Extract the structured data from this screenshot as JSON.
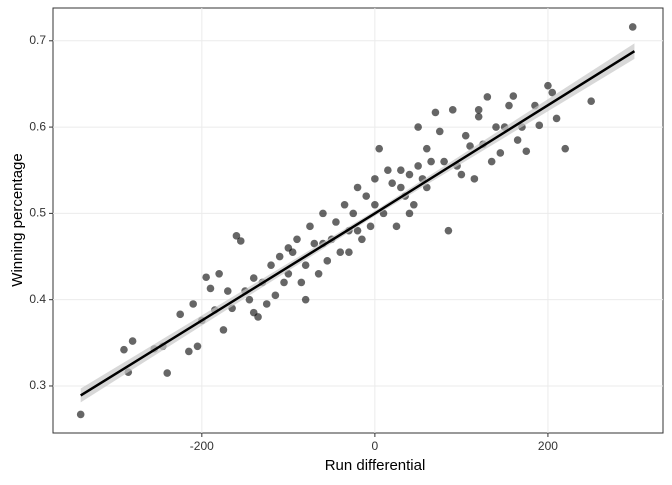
{
  "chart_data": {
    "type": "scatter",
    "x_label": "Run differential",
    "y_label": "Winning percentage",
    "xlim": [
      -372,
      333
    ],
    "ylim": [
      0.2455,
      0.738
    ],
    "xticks": [
      -200,
      0,
      200
    ],
    "yticks": [
      0.3,
      0.4,
      0.5,
      0.6,
      0.7
    ],
    "grid": true,
    "series": [
      {
        "color": "#000000",
        "x": [
          -340,
          298,
          -290,
          -280,
          -285,
          -240,
          -255,
          -245,
          -215,
          -205,
          -225,
          -200,
          -195,
          -190,
          -185,
          -175,
          -160,
          -155,
          250,
          220,
          200,
          205,
          210,
          190,
          185,
          175,
          160,
          155,
          150,
          145,
          130,
          120,
          110,
          100,
          90,
          85,
          75,
          70,
          65,
          60,
          55,
          50,
          45,
          40,
          35,
          30,
          25,
          20,
          15,
          10,
          5,
          0,
          -5,
          -10,
          -15,
          -20,
          -25,
          -30,
          -35,
          -40,
          -45,
          -50,
          -55,
          -60,
          -65,
          -70,
          -75,
          -80,
          -85,
          -90,
          -95,
          -100,
          -105,
          -110,
          -115,
          -120,
          -125,
          -130,
          -135,
          -140,
          -145,
          -150,
          -165,
          -170,
          -180,
          -210,
          95,
          105,
          115,
          125,
          135,
          140,
          165,
          170,
          -60,
          -20,
          40,
          80,
          -100,
          0,
          60,
          -140,
          120,
          -80,
          30,
          -30,
          50
        ],
        "values": [
          0.267,
          0.716,
          0.342,
          0.352,
          0.316,
          0.315,
          0.343,
          0.346,
          0.34,
          0.346,
          0.383,
          0.376,
          0.426,
          0.413,
          0.388,
          0.365,
          0.474,
          0.468,
          0.63,
          0.575,
          0.648,
          0.64,
          0.61,
          0.602,
          0.625,
          0.572,
          0.636,
          0.625,
          0.6,
          0.57,
          0.635,
          0.612,
          0.578,
          0.545,
          0.62,
          0.48,
          0.595,
          0.617,
          0.56,
          0.575,
          0.54,
          0.555,
          0.51,
          0.545,
          0.52,
          0.53,
          0.485,
          0.535,
          0.55,
          0.5,
          0.575,
          0.51,
          0.485,
          0.52,
          0.47,
          0.53,
          0.5,
          0.48,
          0.51,
          0.455,
          0.49,
          0.47,
          0.445,
          0.5,
          0.43,
          0.465,
          0.485,
          0.44,
          0.42,
          0.47,
          0.455,
          0.43,
          0.42,
          0.45,
          0.405,
          0.44,
          0.395,
          0.42,
          0.38,
          0.425,
          0.4,
          0.41,
          0.39,
          0.41,
          0.43,
          0.395,
          0.555,
          0.59,
          0.54,
          0.58,
          0.56,
          0.6,
          0.585,
          0.6,
          0.465,
          0.48,
          0.5,
          0.56,
          0.46,
          0.54,
          0.53,
          0.385,
          0.62,
          0.4,
          0.55,
          0.455,
          0.6
        ]
      }
    ],
    "fit": {
      "color": "#000000",
      "band_color": "#c8c8c8",
      "x": [
        -340,
        0,
        300
      ],
      "values": [
        0.289,
        0.5,
        0.688
      ],
      "lower": [
        0.281,
        0.497,
        0.679
      ],
      "upper": [
        0.297,
        0.503,
        0.697
      ]
    }
  }
}
